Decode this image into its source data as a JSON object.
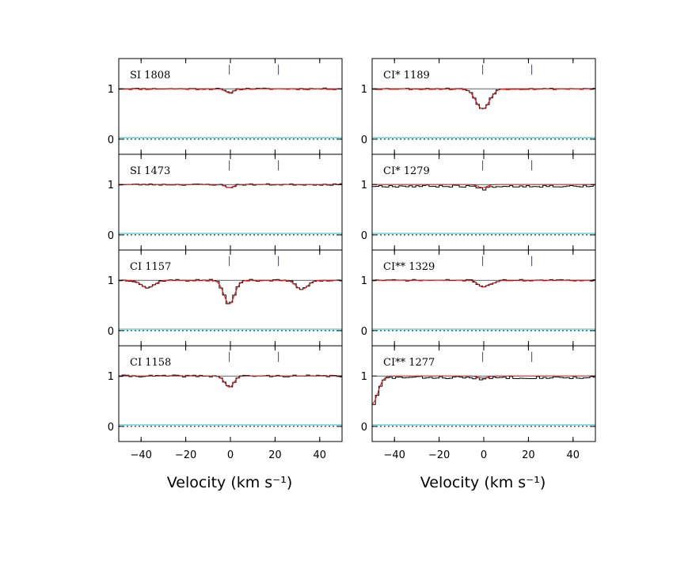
{
  "chart_data": {
    "type": "line",
    "layout": "two columns of four stacked panels, shared x axis",
    "xlabel": "Velocity (km s⁻¹)",
    "xlim": [
      -50,
      50
    ],
    "xticks": [
      -40,
      -20,
      0,
      20,
      40
    ],
    "xtick_labels": [
      "−40",
      "−20",
      "0",
      "20",
      "40"
    ],
    "ylim": [
      -0.3,
      1.6
    ],
    "yticks": [
      0,
      1
    ],
    "ytick_labels": [
      "0",
      "1"
    ],
    "component_markers": [
      {
        "velocity": -0.5,
        "color": "#a02060"
      },
      {
        "velocity": 21.5,
        "color": "#3030e0"
      }
    ],
    "colors": {
      "data": "#000000",
      "model": "#e02020",
      "error": "#19b8c8",
      "continuum": "#000000"
    },
    "columns": [
      {
        "panels": [
          {
            "label": "SI 1808",
            "absorption": [
              {
                "v": -0.5,
                "depth": 0.08,
                "width": 1.8
              }
            ],
            "noise": 0.012,
            "seed": 11
          },
          {
            "label": "SI 1473",
            "absorption": [
              {
                "v": -0.5,
                "depth": 0.06,
                "width": 1.8
              }
            ],
            "noise": 0.012,
            "seed": 23
          },
          {
            "label": "CI 1157",
            "absorption": [
              {
                "v": -0.5,
                "depth": 0.47,
                "width": 2.4
              },
              {
                "v": -37,
                "depth": 0.15,
                "width": 2.8
              },
              {
                "v": 32,
                "depth": 0.18,
                "width": 2.6
              }
            ],
            "noise": 0.015,
            "seed": 37
          },
          {
            "label": "CI 1158",
            "absorption": [
              {
                "v": -0.5,
                "depth": 0.22,
                "width": 2.0
              }
            ],
            "noise": 0.015,
            "seed": 41
          }
        ]
      },
      {
        "panels": [
          {
            "label": "CI* 1189",
            "absorption": [
              {
                "v": -0.5,
                "depth": 0.4,
                "width": 3.0
              }
            ],
            "noise": 0.012,
            "seed": 53
          },
          {
            "label": "CI* 1279",
            "absorption": [
              {
                "v": -0.5,
                "depth": 0.06,
                "width": 2.0
              }
            ],
            "noise": 0.018,
            "seed": 67,
            "offset": -0.03
          },
          {
            "label": "CI** 1329",
            "absorption": [
              {
                "v": -0.5,
                "depth": 0.13,
                "width": 2.0
              },
              {
                "v": 4,
                "depth": 0.05,
                "width": 2.0
              }
            ],
            "noise": 0.012,
            "seed": 71
          },
          {
            "label": "CI** 1277",
            "absorption": [
              {
                "v": -0.5,
                "depth": 0.04,
                "width": 2.0
              },
              {
                "v": -50,
                "depth": 0.55,
                "width": 2.5
              }
            ],
            "noise": 0.018,
            "seed": 83,
            "offset": -0.03
          }
        ]
      }
    ]
  }
}
